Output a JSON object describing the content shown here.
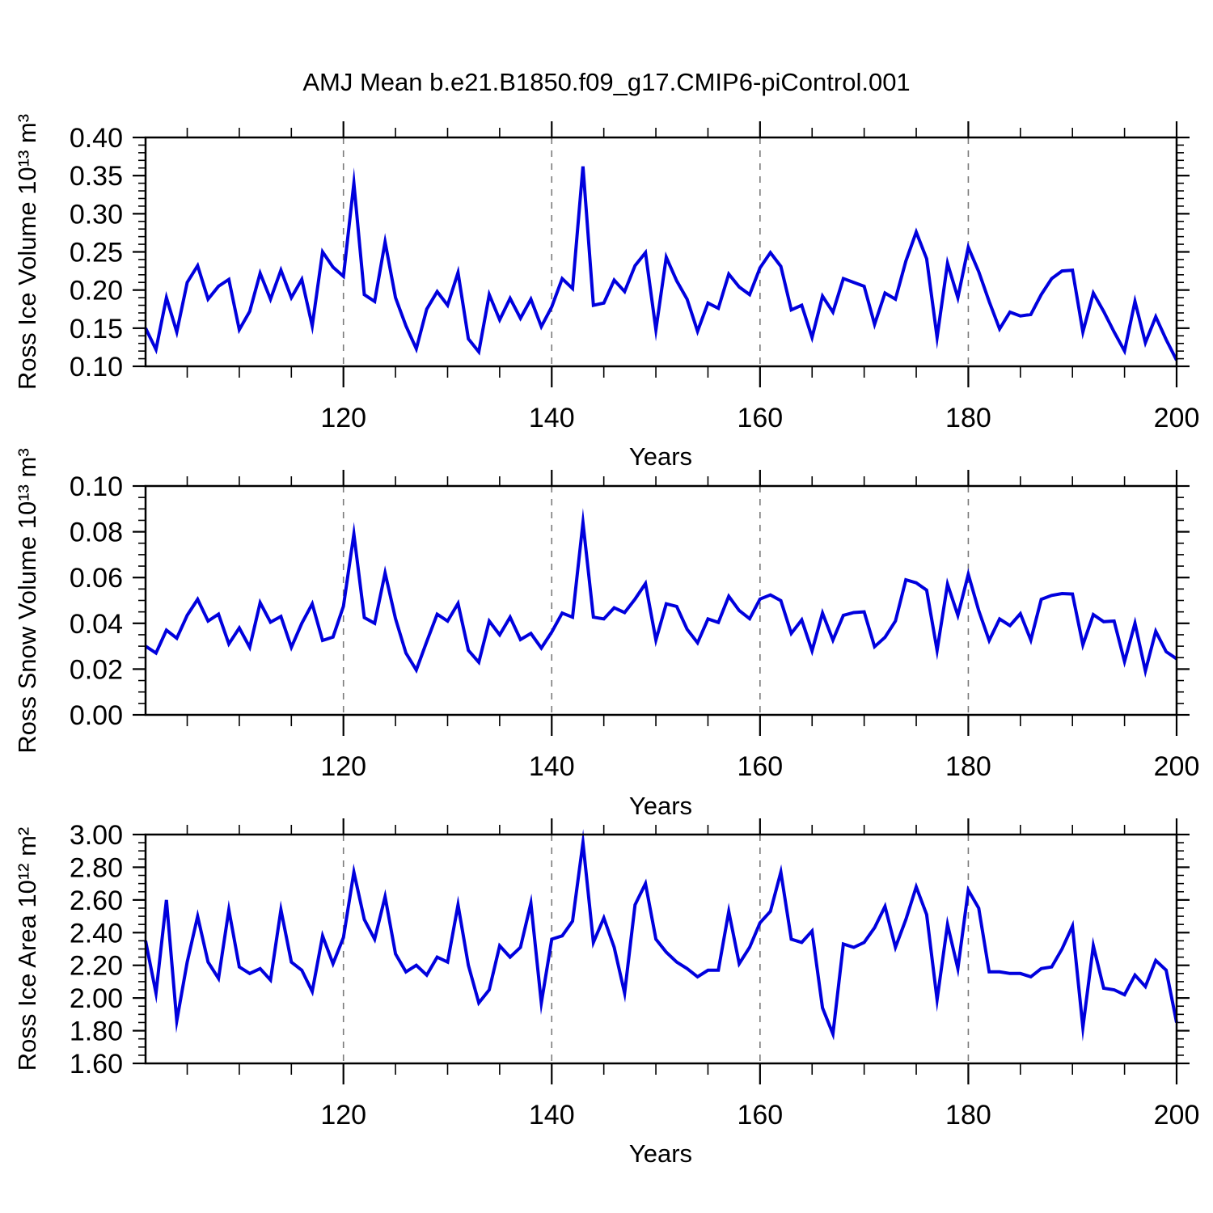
{
  "title": "AMJ Mean b.e21.B1850.f09_g17.CMIP6-piControl.001",
  "colors": {
    "line": "#0000dd",
    "grid": "#7a7a7a",
    "axis": "#000000",
    "text": "#000000",
    "background": "#ffffff"
  },
  "chart_data": [
    {
      "type": "line",
      "name": "ross-ice-volume",
      "ylabel": "Ross Ice Volume 10¹³ m³",
      "xlabel": "Years",
      "x_start": 101,
      "x_end": 200,
      "ylim": [
        0.1,
        0.4
      ],
      "ytick_step": 0.05,
      "ytick_minor": 0.01,
      "ytick_labels": [
        "0.40",
        "0.35",
        "0.30",
        "0.25",
        "0.20",
        "0.15",
        "0.10"
      ],
      "xticks": [
        120,
        140,
        160,
        180,
        200
      ],
      "xtick_labels": [
        "120",
        "140",
        "160",
        "180",
        "200"
      ],
      "xtick_minor_step": 5,
      "gridlines": [
        120,
        140,
        160,
        180
      ],
      "line_color": "#0000dd",
      "values": [
        0.15,
        0.122,
        0.19,
        0.145,
        0.21,
        0.232,
        0.188,
        0.205,
        0.214,
        0.148,
        0.172,
        0.222,
        0.188,
        0.226,
        0.19,
        0.214,
        0.153,
        0.25,
        0.23,
        0.218,
        0.34,
        0.194,
        0.185,
        0.263,
        0.19,
        0.153,
        0.123,
        0.175,
        0.198,
        0.18,
        0.223,
        0.136,
        0.119,
        0.194,
        0.161,
        0.189,
        0.163,
        0.188,
        0.152,
        0.178,
        0.215,
        0.202,
        0.362,
        0.18,
        0.183,
        0.213,
        0.198,
        0.232,
        0.249,
        0.148,
        0.243,
        0.212,
        0.188,
        0.146,
        0.183,
        0.176,
        0.221,
        0.204,
        0.194,
        0.229,
        0.249,
        0.231,
        0.174,
        0.18,
        0.138,
        0.192,
        0.171,
        0.215,
        0.21,
        0.205,
        0.155,
        0.196,
        0.188,
        0.238,
        0.276,
        0.241,
        0.138,
        0.235,
        0.19,
        0.256,
        0.224,
        0.185,
        0.149,
        0.171,
        0.166,
        0.168,
        0.194,
        0.215,
        0.225,
        0.226,
        0.145,
        0.196,
        0.172,
        0.145,
        0.12,
        0.185,
        0.131,
        0.165,
        0.135,
        0.108
      ]
    },
    {
      "type": "line",
      "name": "ross-snow-volume",
      "ylabel": "Ross Snow Volume 10¹³ m³",
      "xlabel": "Years",
      "x_start": 101,
      "x_end": 200,
      "ylim": [
        0.0,
        0.1
      ],
      "ytick_step": 0.02,
      "ytick_minor": 0.005,
      "ytick_labels": [
        "0.10",
        "0.08",
        "0.06",
        "0.04",
        "0.02",
        "0.00"
      ],
      "xticks": [
        120,
        140,
        160,
        180,
        200
      ],
      "xtick_labels": [
        "120",
        "140",
        "160",
        "180",
        "200"
      ],
      "xtick_minor_step": 5,
      "gridlines": [
        120,
        140,
        160,
        180
      ],
      "line_color": "#0000dd",
      "values": [
        0.03,
        0.027,
        0.037,
        0.0335,
        0.0435,
        0.0505,
        0.041,
        0.044,
        0.031,
        0.038,
        0.0295,
        0.049,
        0.0405,
        0.043,
        0.0295,
        0.04,
        0.0485,
        0.0325,
        0.034,
        0.0475,
        0.079,
        0.0425,
        0.04,
        0.062,
        0.042,
        0.027,
        0.0196,
        0.032,
        0.044,
        0.041,
        0.0487,
        0.0282,
        0.023,
        0.041,
        0.035,
        0.0427,
        0.0329,
        0.0356,
        0.0292,
        0.0362,
        0.0445,
        0.0427,
        0.084,
        0.0427,
        0.0419,
        0.0468,
        0.0447,
        0.0506,
        0.0574,
        0.0327,
        0.0485,
        0.0474,
        0.0374,
        0.0315,
        0.0419,
        0.0404,
        0.0518,
        0.0456,
        0.042,
        0.0506,
        0.0524,
        0.0499,
        0.0356,
        0.0415,
        0.028,
        0.0445,
        0.0327,
        0.0435,
        0.0447,
        0.045,
        0.0298,
        0.0339,
        0.041,
        0.059,
        0.0577,
        0.0545,
        0.0282,
        0.0571,
        0.0435,
        0.0614,
        0.0456,
        0.0325,
        0.0419,
        0.039,
        0.0442,
        0.0327,
        0.0505,
        0.0522,
        0.053,
        0.0528,
        0.0306,
        0.0438,
        0.0407,
        0.041,
        0.0233,
        0.04,
        0.0192,
        0.0365,
        0.0276,
        0.0245
      ]
    },
    {
      "type": "line",
      "name": "ross-ice-area",
      "ylabel": "Ross Ice Area 10¹² m²",
      "xlabel": "Years",
      "x_start": 101,
      "x_end": 200,
      "ylim": [
        1.6,
        3.0
      ],
      "ytick_step": 0.2,
      "ytick_minor": 0.05,
      "ytick_labels": [
        "3.00",
        "2.80",
        "2.60",
        "2.40",
        "2.20",
        "2.00",
        "1.80",
        "1.60"
      ],
      "xticks": [
        120,
        140,
        160,
        180,
        200
      ],
      "xtick_labels": [
        "120",
        "140",
        "160",
        "180",
        "200"
      ],
      "xtick_minor_step": 5,
      "gridlines": [
        120,
        140,
        160,
        180
      ],
      "line_color": "#0000dd",
      "values": [
        2.35,
        2.03,
        2.6,
        1.86,
        2.22,
        2.5,
        2.22,
        2.12,
        2.54,
        2.19,
        2.15,
        2.18,
        2.11,
        2.54,
        2.22,
        2.17,
        2.04,
        2.38,
        2.21,
        2.37,
        2.77,
        2.48,
        2.36,
        2.62,
        2.27,
        2.16,
        2.2,
        2.14,
        2.25,
        2.22,
        2.57,
        2.2,
        1.97,
        2.05,
        2.32,
        2.25,
        2.31,
        2.58,
        1.97,
        2.36,
        2.38,
        2.47,
        2.95,
        2.34,
        2.49,
        2.31,
        2.03,
        2.57,
        2.7,
        2.36,
        2.28,
        2.22,
        2.18,
        2.13,
        2.17,
        2.17,
        2.53,
        2.21,
        2.31,
        2.46,
        2.53,
        2.77,
        2.36,
        2.34,
        2.41,
        1.94,
        1.78,
        2.33,
        2.31,
        2.34,
        2.43,
        2.56,
        2.31,
        2.48,
        2.68,
        2.51,
        1.99,
        2.45,
        2.18,
        2.66,
        2.55,
        2.16,
        2.16,
        2.15,
        2.15,
        2.13,
        2.18,
        2.19,
        2.3,
        2.44,
        1.82,
        2.32,
        2.06,
        2.05,
        2.02,
        2.14,
        2.07,
        2.23,
        2.17,
        1.85
      ]
    }
  ]
}
